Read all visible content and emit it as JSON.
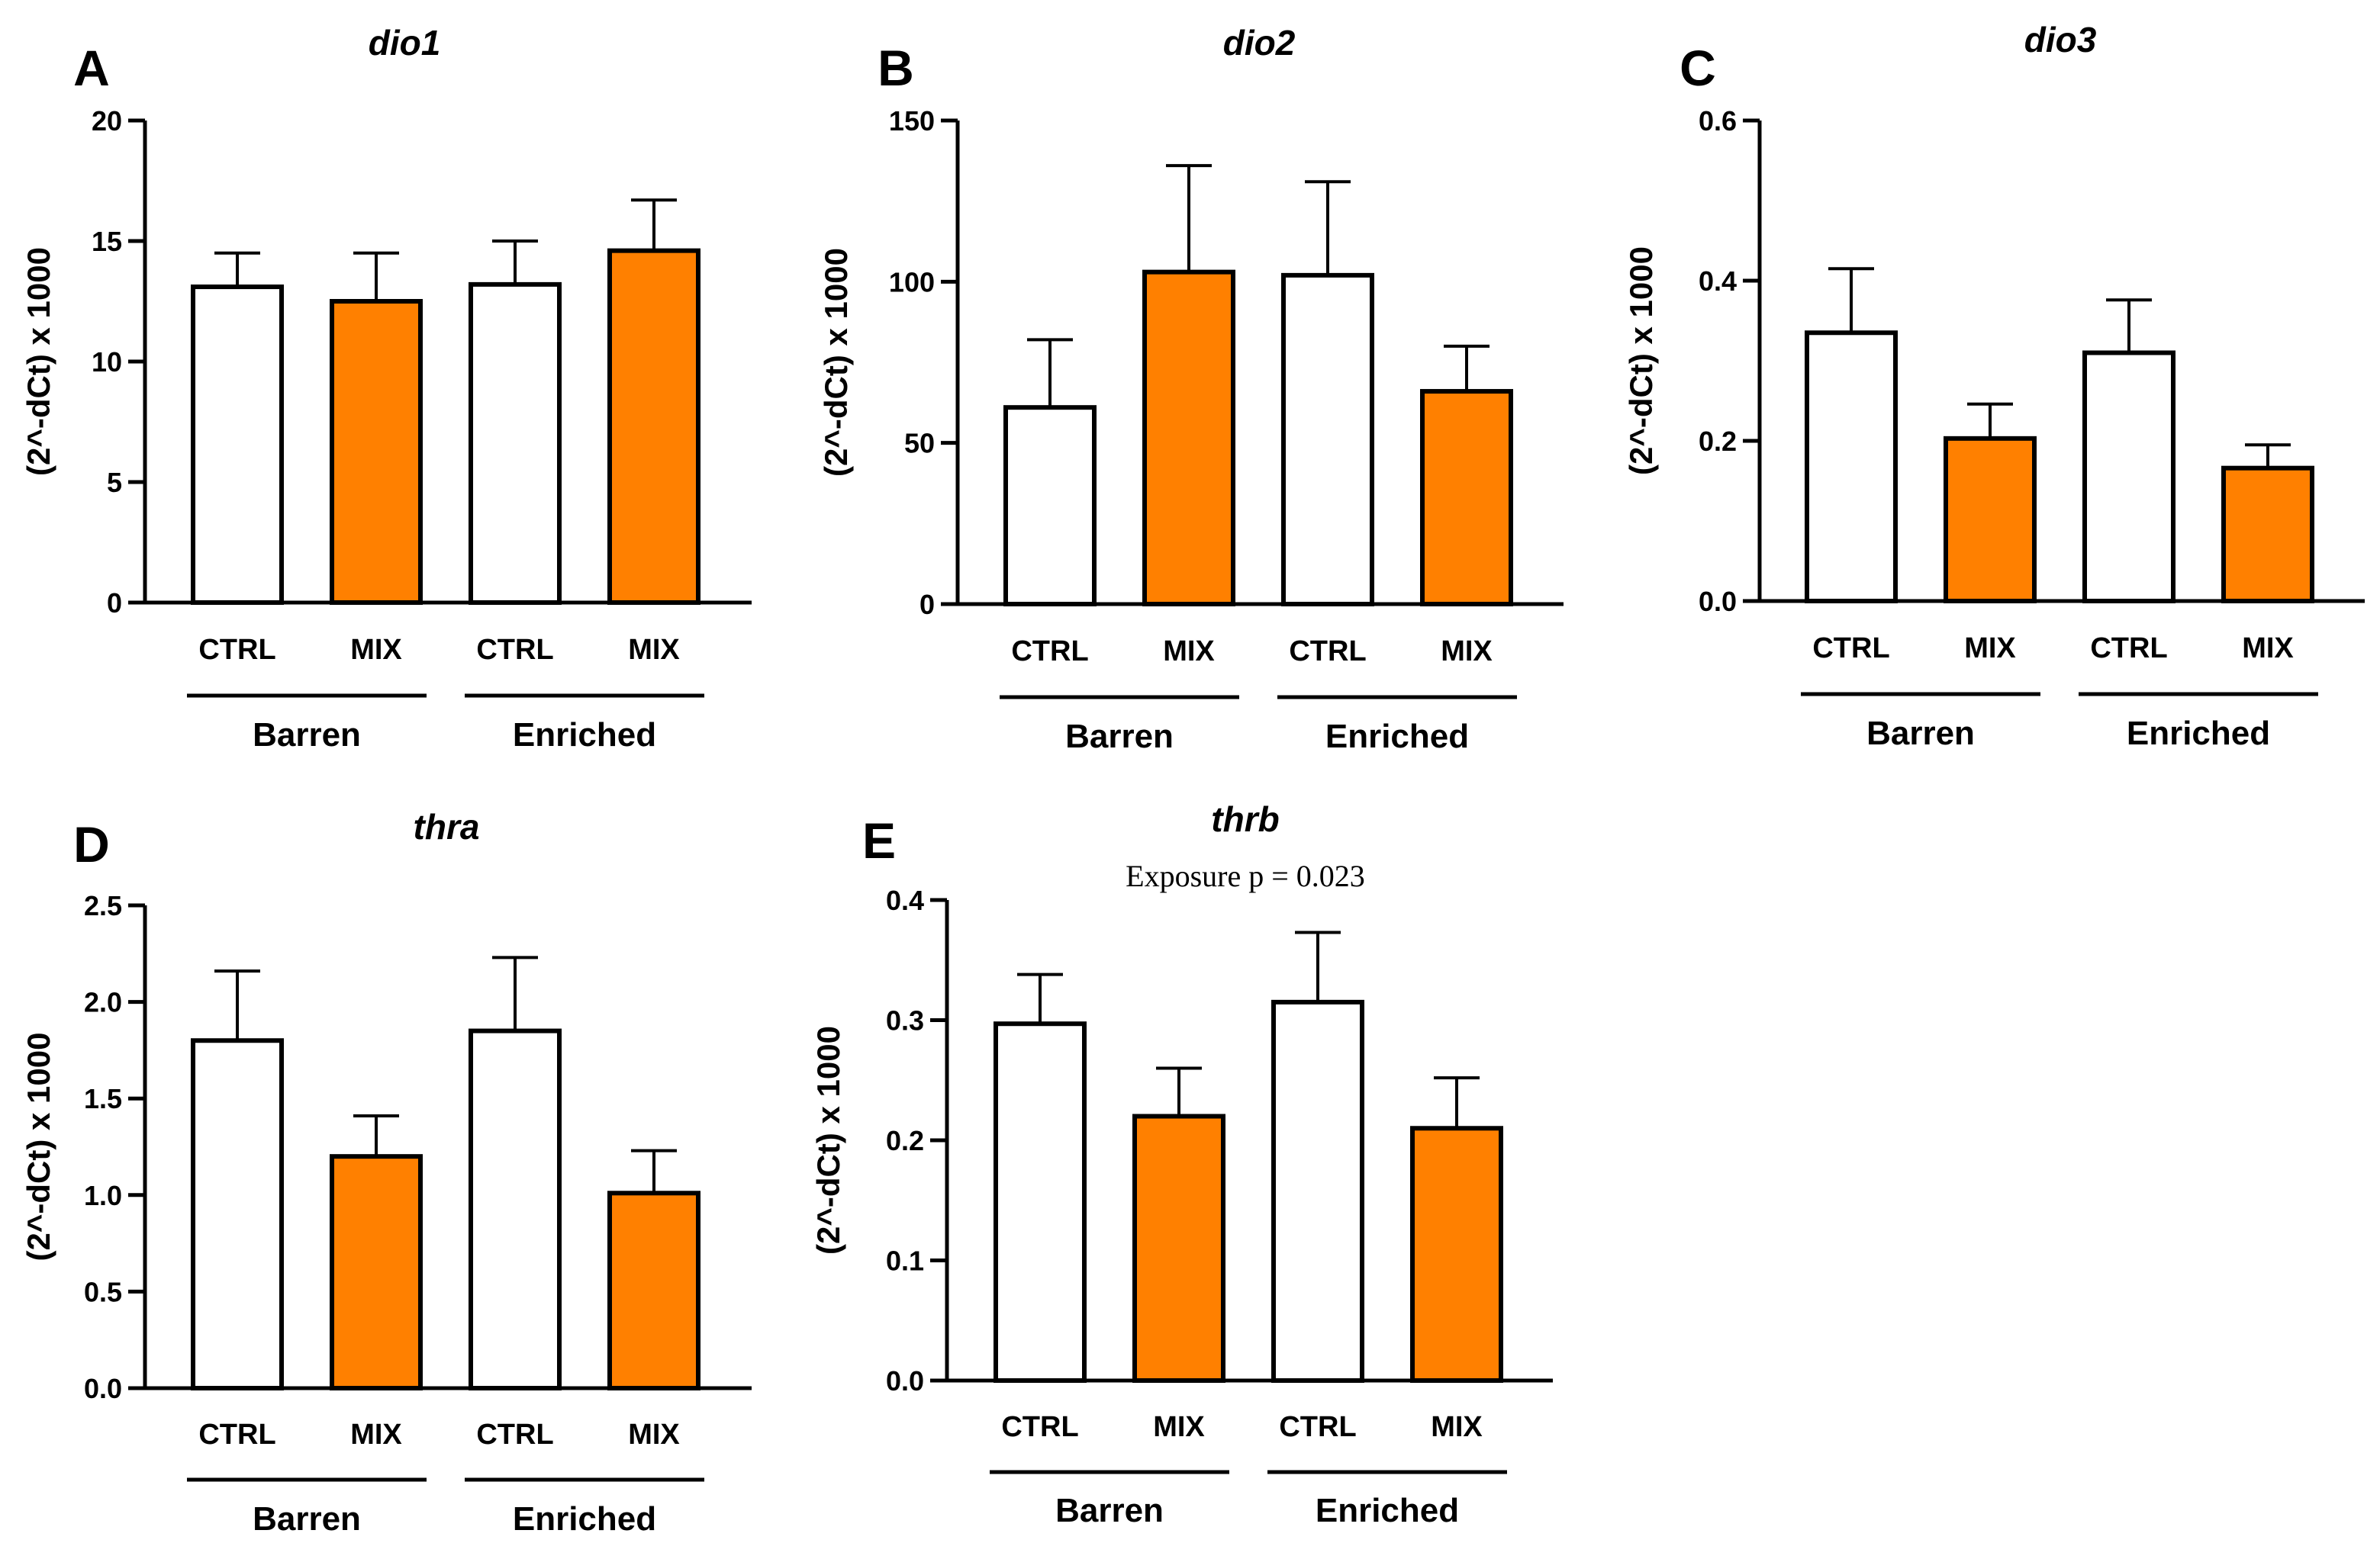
{
  "colors": {
    "ctrl_fill": "#ffffff",
    "mix_fill": "#ff8000",
    "stroke": "#000000"
  },
  "chart_data": [
    {
      "panel": "A",
      "type": "bar",
      "title": "dio1",
      "ylabel": "(2^-dCt) x 1000",
      "ylim": [
        0,
        20
      ],
      "yticks": [
        "0",
        "5",
        "10",
        "15",
        "20"
      ],
      "categories": [
        "CTRL",
        "MIX",
        "CTRL",
        "MIX"
      ],
      "groups": [
        "Barren",
        "Enriched"
      ],
      "values": [
        13.1,
        12.5,
        13.2,
        14.6
      ],
      "errors": [
        1.4,
        2.0,
        1.8,
        2.1
      ],
      "series_fill": [
        "ctrl",
        "mix",
        "ctrl",
        "mix"
      ],
      "annotation": ""
    },
    {
      "panel": "B",
      "type": "bar",
      "title": "dio2",
      "ylabel": "(2^-dCt) x 1000",
      "ylim": [
        0,
        150
      ],
      "yticks": [
        "0",
        "50",
        "100",
        "150"
      ],
      "categories": [
        "CTRL",
        "MIX",
        "CTRL",
        "MIX"
      ],
      "groups": [
        "Barren",
        "Enriched"
      ],
      "values": [
        61,
        103,
        102,
        66
      ],
      "errors": [
        21,
        33,
        29,
        14
      ],
      "series_fill": [
        "ctrl",
        "mix",
        "ctrl",
        "mix"
      ],
      "annotation": ""
    },
    {
      "panel": "C",
      "type": "bar",
      "title": "dio3",
      "ylabel": "(2^-dCt) x 1000",
      "ylim": [
        0,
        0.6
      ],
      "yticks": [
        "0.0",
        "0.2",
        "0.4",
        "0.6"
      ],
      "categories": [
        "CTRL",
        "MIX",
        "CTRL",
        "MIX"
      ],
      "groups": [
        "Barren",
        "Enriched"
      ],
      "values": [
        0.335,
        0.203,
        0.31,
        0.166
      ],
      "errors": [
        0.08,
        0.043,
        0.066,
        0.029
      ],
      "series_fill": [
        "ctrl",
        "mix",
        "ctrl",
        "mix"
      ],
      "annotation": ""
    },
    {
      "panel": "D",
      "type": "bar",
      "title": "thra",
      "ylabel": "(2^-dCt) x 1000",
      "ylim": [
        0,
        2.5
      ],
      "yticks": [
        "0.0",
        "0.5",
        "1.0",
        "1.5",
        "2.0",
        "2.5"
      ],
      "categories": [
        "CTRL",
        "MIX",
        "CTRL",
        "MIX"
      ],
      "groups": [
        "Barren",
        "Enriched"
      ],
      "values": [
        1.8,
        1.2,
        1.85,
        1.01
      ],
      "errors": [
        0.36,
        0.21,
        0.38,
        0.22
      ],
      "series_fill": [
        "ctrl",
        "mix",
        "ctrl",
        "mix"
      ],
      "annotation": ""
    },
    {
      "panel": "E",
      "type": "bar",
      "title": "thrb",
      "ylabel": "(2^-dCt) x 1000",
      "ylim": [
        0,
        0.4
      ],
      "yticks": [
        "0.0",
        "0.1",
        "0.2",
        "0.3",
        "0.4"
      ],
      "categories": [
        "CTRL",
        "MIX",
        "CTRL",
        "MIX"
      ],
      "groups": [
        "Barren",
        "Enriched"
      ],
      "values": [
        0.297,
        0.22,
        0.315,
        0.21
      ],
      "errors": [
        0.041,
        0.04,
        0.058,
        0.042
      ],
      "series_fill": [
        "ctrl",
        "mix",
        "ctrl",
        "mix"
      ],
      "annotation": "Exposure p = 0.023"
    }
  ]
}
